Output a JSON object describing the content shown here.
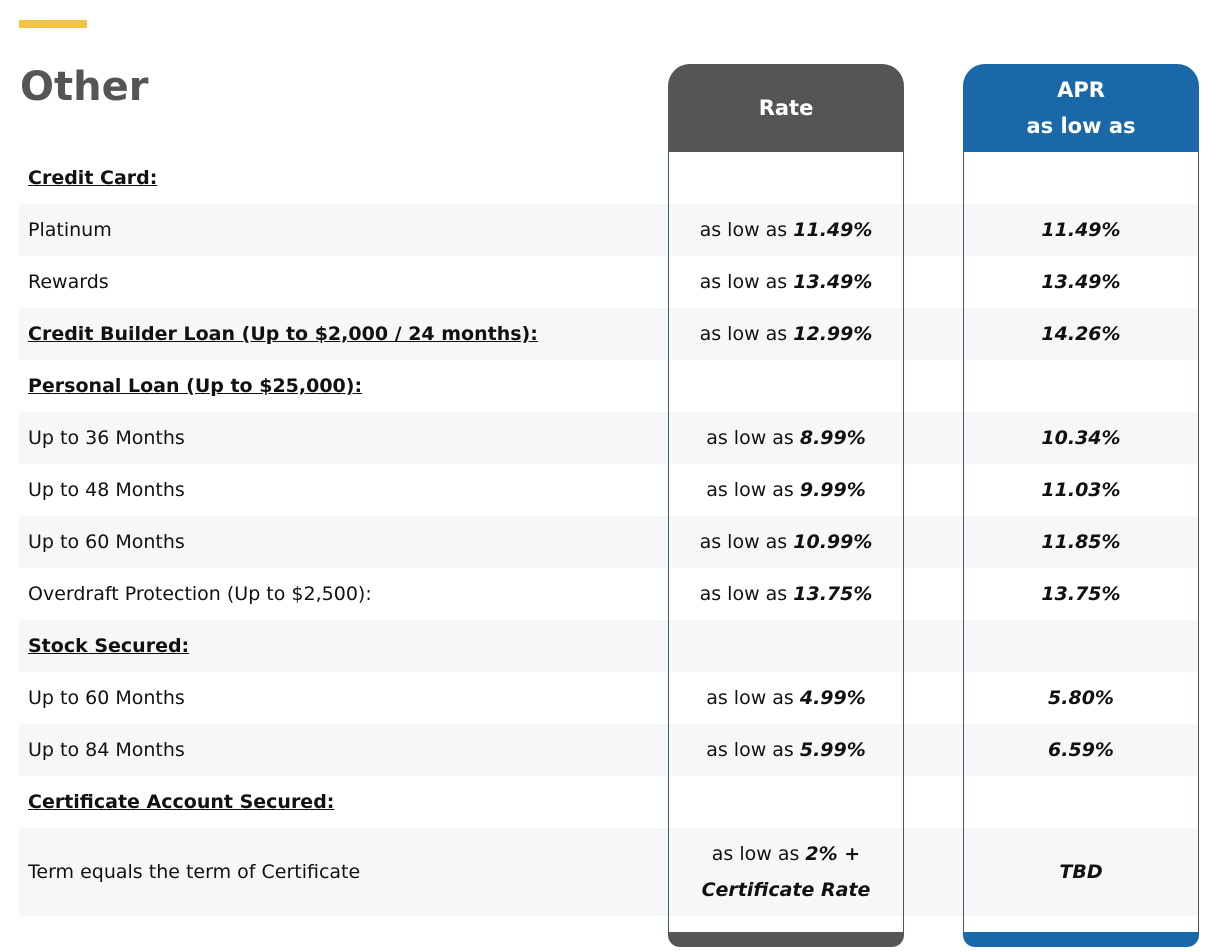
{
  "section_title": "Other",
  "columns": {
    "rate": "Rate",
    "apr": "APR",
    "apr_sub": "as low as"
  },
  "rows": [
    {
      "label": "Credit Card:",
      "heading": true
    },
    {
      "label": "Platinum",
      "rate": {
        "prefix": "as low as",
        "value": "11.49%"
      },
      "apr": "11.49%"
    },
    {
      "label": "Rewards",
      "rate": {
        "prefix": "as low as",
        "value": "13.49%"
      },
      "apr": "13.49%"
    },
    {
      "label": "Credit Builder Loan (Up to $2,000 / 24 months):",
      "heading": true,
      "rate": {
        "prefix": "as low as",
        "value": "12.99%"
      },
      "apr": "14.26%"
    },
    {
      "label": "Personal Loan (Up to $25,000):",
      "heading": true
    },
    {
      "label": "Up to 36 Months",
      "rate": {
        "prefix": "as low as",
        "value": "8.99%"
      },
      "apr": "10.34%"
    },
    {
      "label": "Up to 48 Months",
      "rate": {
        "prefix": "as low as",
        "value": "9.99%"
      },
      "apr": "11.03%"
    },
    {
      "label": "Up to 60 Months",
      "rate": {
        "prefix": "as low as",
        "value": "10.99%"
      },
      "apr": "11.85%"
    },
    {
      "label": "Overdraft Protection (Up to $2,500):",
      "rate": {
        "prefix": "as low as",
        "value": "13.75%"
      },
      "apr": "13.75%"
    },
    {
      "label": "Stock Secured:",
      "heading": true
    },
    {
      "label": "Up to 60 Months",
      "rate": {
        "prefix": "as low as",
        "value": "4.99%"
      },
      "apr": "5.80%"
    },
    {
      "label": "Up to 84 Months",
      "rate": {
        "prefix": "as low as",
        "value": "5.99%"
      },
      "apr": "6.59%"
    },
    {
      "label": "Certificate Account Secured:",
      "heading": true
    },
    {
      "label": "Term equals the term of Certificate",
      "rate": {
        "prefix": "as low as",
        "value": "2% +",
        "note": "Certificate Rate"
      },
      "apr": "TBD"
    }
  ]
}
